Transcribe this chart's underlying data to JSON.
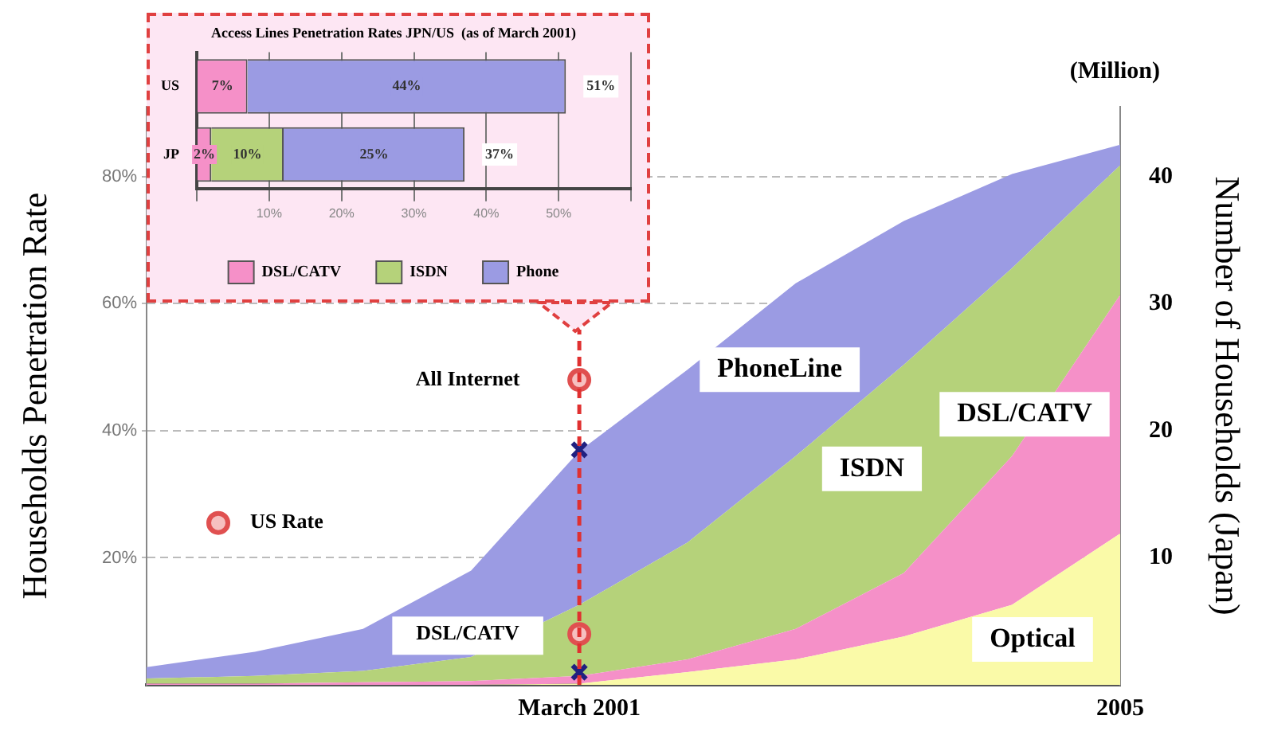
{
  "chart_data": [
    {
      "type": "area",
      "stacked": true,
      "ylabel": "Households Penetration Rate",
      "y2label": "Number of Households (Japan)",
      "categories": [
        null,
        null,
        null,
        null,
        "March 2001",
        null,
        null,
        null,
        null,
        "2005"
      ],
      "ylim": [
        0,
        91
      ],
      "yticks": [
        {
          "value": 20,
          "label": "20%"
        },
        {
          "value": 40,
          "label": "40%"
        },
        {
          "value": 60,
          "label": "60%"
        },
        {
          "value": 80,
          "label": "80%"
        }
      ],
      "y2lim": [
        0,
        45.5
      ],
      "y2ticks": [
        10,
        20,
        30,
        40
      ],
      "grid": "y",
      "legend": "left",
      "series": [
        {
          "name": "Optical",
          "color": "#fafaa8",
          "axis": "y2",
          "values": [
            0,
            0,
            0,
            0,
            0.1,
            1.0,
            2.0,
            3.8,
            6.3,
            11.9
          ]
        },
        {
          "name": "DSL/CATV",
          "color": "#f590c8",
          "axis": "y2",
          "values": [
            0.1,
            0.1,
            0.2,
            0.3,
            0.6,
            1.0,
            2.4,
            5.0,
            11.7,
            18.8
          ]
        },
        {
          "name": "ISDN",
          "color": "#b5d27a",
          "axis": "y2",
          "values": [
            0.4,
            0.6,
            0.9,
            1.9,
            5.6,
            9.2,
            13.6,
            16.4,
            14.8,
            10.2
          ]
        },
        {
          "name": "PhoneLine",
          "color": "#9b9be3",
          "axis": "y2",
          "values": [
            0.9,
            1.9,
            3.3,
            6.8,
            12.1,
            13.6,
            13.6,
            11.3,
            7.4,
            1.6
          ]
        },
        {
          "name": "US Rate",
          "type": "scatter",
          "marker": "circle",
          "color": "#e05050",
          "x": [
            "March 2001",
            "March 2001"
          ],
          "values": [
            48,
            8
          ]
        },
        {
          "type": "scatter",
          "marker": "cross",
          "color": "#202080",
          "x": [
            "March 2001",
            "March 2001"
          ],
          "values": [
            37,
            2
          ]
        }
      ],
      "ref_lines": [
        {
          "axis": "x",
          "value": "March 2001",
          "color": "#e03030",
          "line_style": "dashed"
        }
      ],
      "annotations": [
        "(Million)",
        {
          "text": "All Internet",
          "x": "March 2001",
          "y": 48
        },
        {
          "text": "DSL/CATV",
          "x": "March 2001",
          "y": 8
        }
      ]
    },
    {
      "type": "bar",
      "orientation": "horizontal",
      "stacked": true,
      "title": "Access Lines Penetration Rates JPN/US  (as of March 2001)",
      "categories": [
        "US",
        "JP"
      ],
      "series": [
        {
          "name": "DSL/CATV",
          "color": "#f590c8",
          "values": [
            7,
            2
          ],
          "value_labels": [
            "7%",
            "2%"
          ]
        },
        {
          "name": "ISDN",
          "color": "#b5d27a",
          "values": [
            null,
            10
          ],
          "value_labels": [
            null,
            "10%"
          ]
        },
        {
          "name": "Phone",
          "color": "#9b9be3",
          "values": [
            44,
            25
          ],
          "value_labels": [
            "44%",
            "25%"
          ]
        }
      ],
      "totals": [
        "51%",
        "37%"
      ],
      "xlim": [
        0,
        60
      ],
      "xticks": [
        {
          "value": 0,
          "label": null
        },
        {
          "value": 10,
          "label": "10%"
        },
        {
          "value": 20,
          "label": "20%"
        },
        {
          "value": 30,
          "label": "30%"
        },
        {
          "value": 40,
          "label": "40%"
        },
        {
          "value": 50,
          "label": "50%"
        },
        {
          "value": 60,
          "label": null
        }
      ],
      "grid": "x",
      "legend": "bottom"
    }
  ]
}
